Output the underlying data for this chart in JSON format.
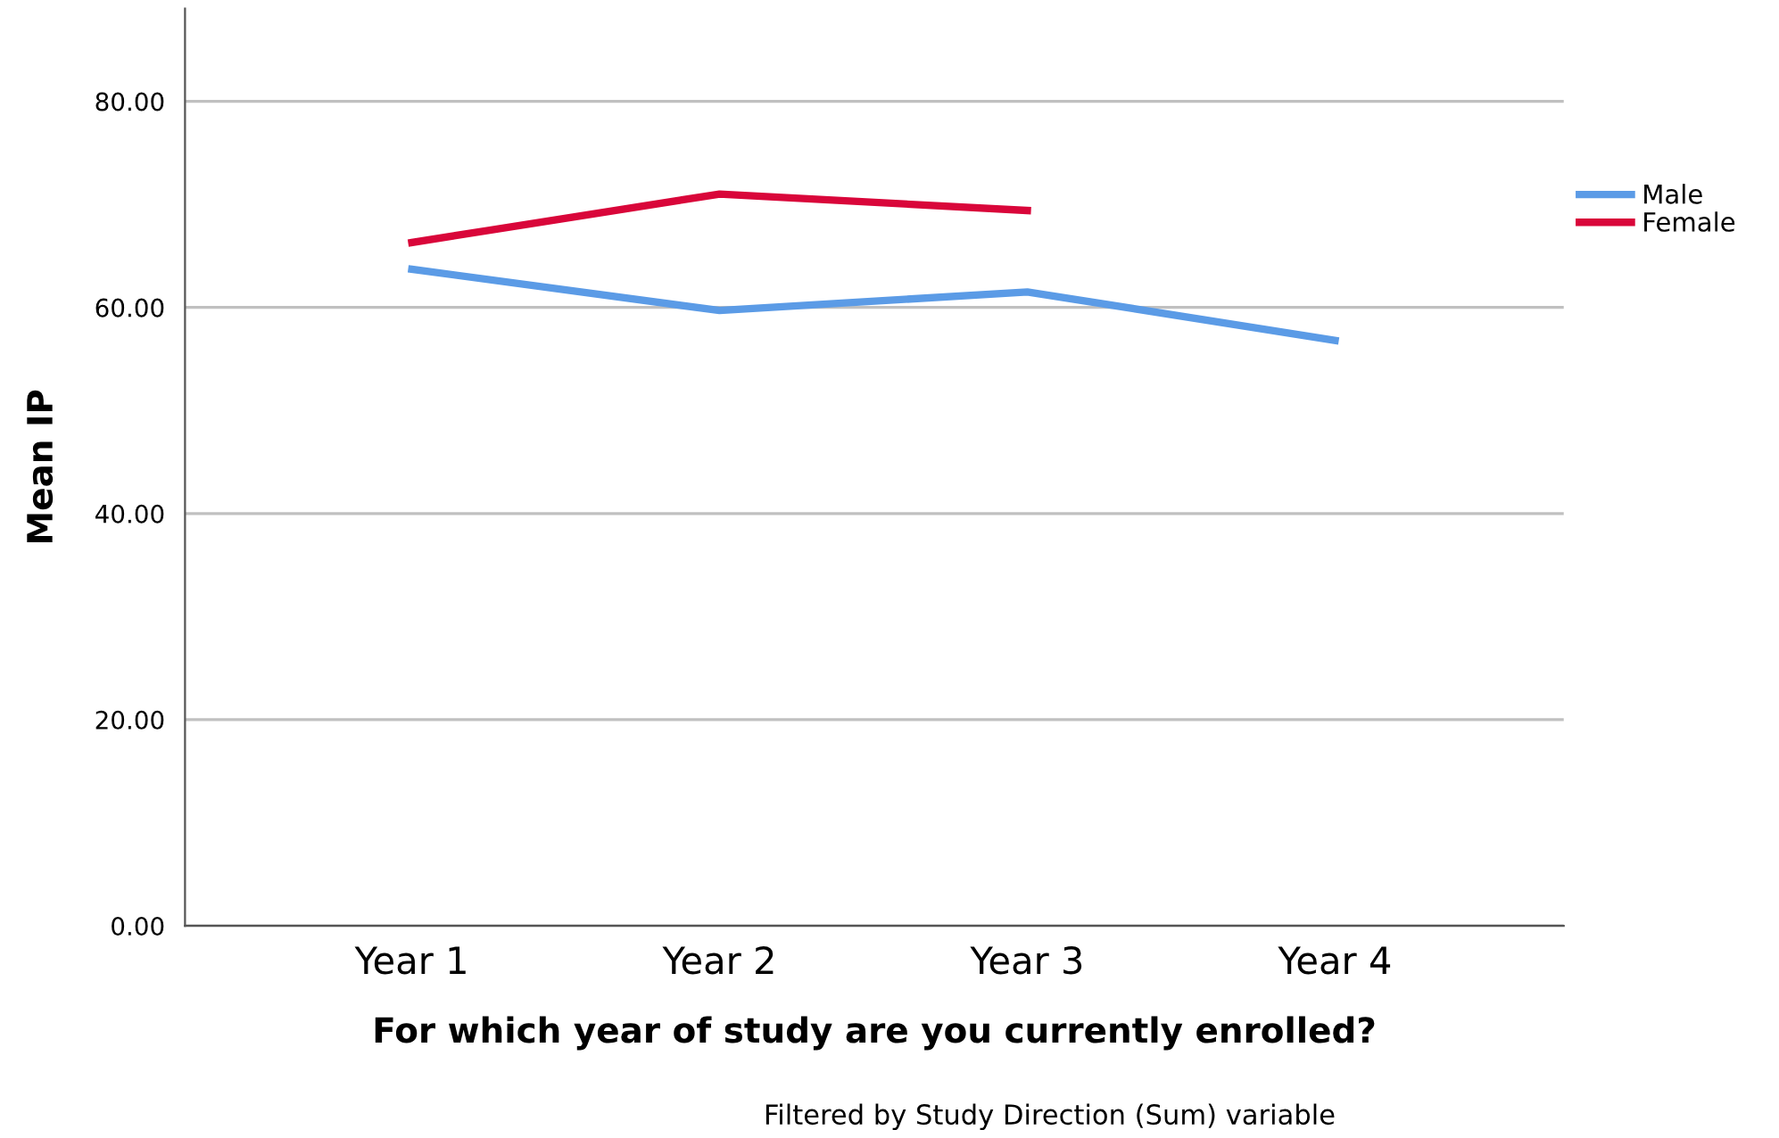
{
  "chart_data": {
    "type": "line",
    "xlabel": "For which year of study are you currently enrolled?",
    "ylabel": "Mean IP",
    "categories": [
      "Year 1",
      "Year 2",
      "Year 3",
      "Year 4"
    ],
    "series": [
      {
        "name": "Male",
        "color": "#5b9be6",
        "values": [
          63.7,
          59.7,
          61.5,
          56.8
        ]
      },
      {
        "name": "Female",
        "color": "#d9063a",
        "values": [
          66.3,
          71.0,
          69.4,
          null
        ]
      }
    ],
    "ylim": [
      0,
      89
    ],
    "yticks": [
      {
        "value": 0,
        "label": "0.00"
      },
      {
        "value": 20,
        "label": "20.00"
      },
      {
        "value": 40,
        "label": "40.00"
      },
      {
        "value": 60,
        "label": "60.00"
      },
      {
        "value": 80,
        "label": "80.00"
      }
    ],
    "grid": "y",
    "legend": "right",
    "marker": "none",
    "line_style": "solid",
    "annotations": [
      "Filtered by Study Direction (Sum) variable"
    ]
  }
}
